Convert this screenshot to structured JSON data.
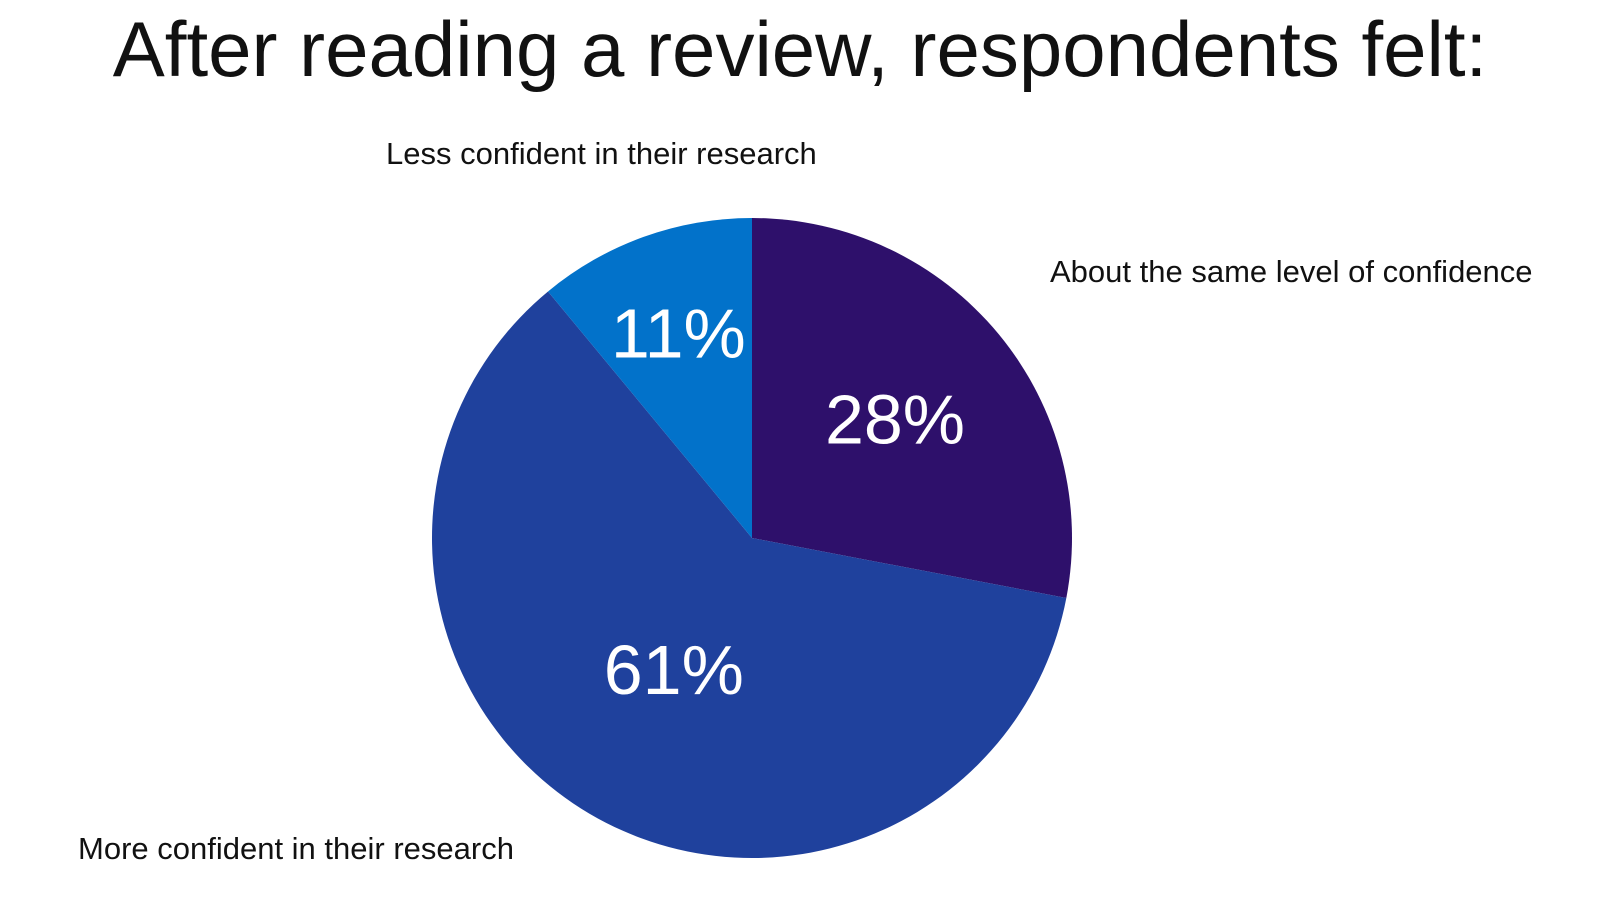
{
  "chart_data": {
    "type": "pie",
    "title": "After reading a review, respondents felt:",
    "categories": [
      "About the same level of confidence",
      "More confident in their research",
      "Less confident in their research"
    ],
    "values": [
      28,
      61,
      11
    ],
    "value_labels": [
      "28%",
      "61%",
      "11%"
    ],
    "colors": [
      "#2E106B",
      "#1F419D",
      "#0272CA"
    ],
    "start_angle": "12 o'clock",
    "direction": "clockwise",
    "legend": "none"
  }
}
